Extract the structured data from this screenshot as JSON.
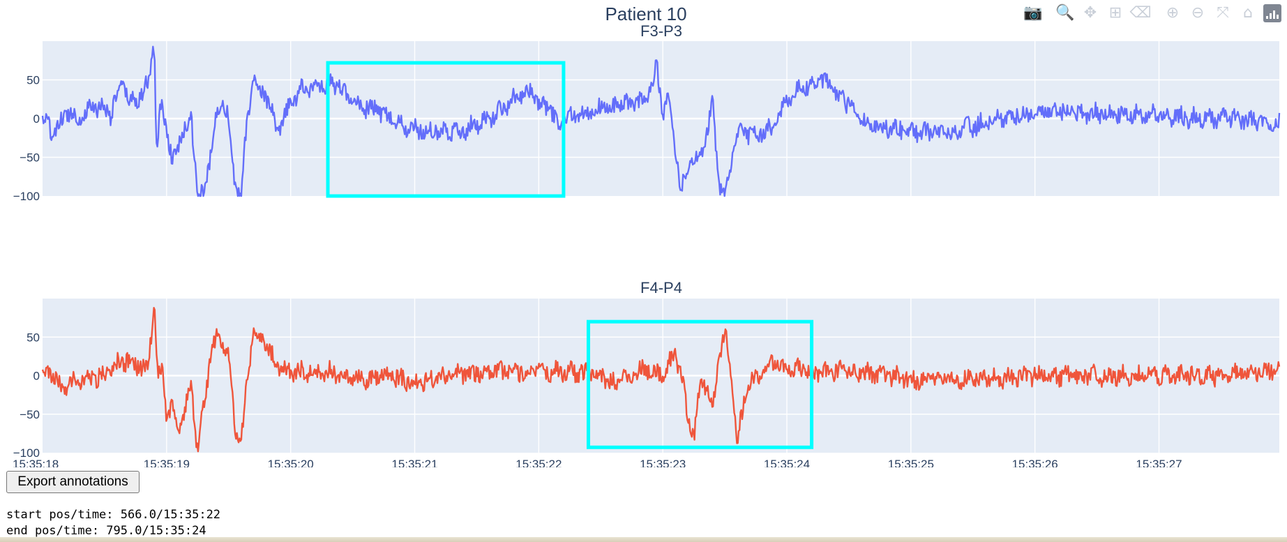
{
  "chart_data": {
    "type": "line",
    "title": "Patient 10",
    "x_tick_labels": [
      "15:35:18",
      "15:35:19",
      "15:35:20",
      "15:35:21",
      "15:35:22",
      "15:35:23",
      "15:35:24",
      "15:35:25",
      "15:35:26",
      "15:35:27"
    ],
    "x_range_seconds": [
      0,
      9.97
    ],
    "y_ticks": [
      50,
      0,
      -50,
      -100
    ],
    "y_range": [
      -100,
      100
    ],
    "grid": true,
    "subplots": [
      {
        "title": "F3-P3",
        "color": "#636efa",
        "keypoints": [
          [
            0.0,
            0
          ],
          [
            0.1,
            -20
          ],
          [
            0.2,
            10
          ],
          [
            0.3,
            0
          ],
          [
            0.4,
            15
          ],
          [
            0.5,
            15
          ],
          [
            0.55,
            5
          ],
          [
            0.6,
            30
          ],
          [
            0.65,
            45
          ],
          [
            0.7,
            20
          ],
          [
            0.8,
            30
          ],
          [
            0.85,
            45
          ],
          [
            0.9,
            100
          ],
          [
            0.92,
            -50
          ],
          [
            0.95,
            20
          ],
          [
            1.0,
            -10
          ],
          [
            1.05,
            -60
          ],
          [
            1.1,
            -30
          ],
          [
            1.2,
            0
          ],
          [
            1.25,
            -100
          ],
          [
            1.3,
            -100
          ],
          [
            1.4,
            0
          ],
          [
            1.45,
            30
          ],
          [
            1.5,
            0
          ],
          [
            1.55,
            -90
          ],
          [
            1.6,
            -100
          ],
          [
            1.65,
            0
          ],
          [
            1.7,
            50
          ],
          [
            1.8,
            30
          ],
          [
            1.9,
            -20
          ],
          [
            2.0,
            20
          ],
          [
            2.1,
            40
          ],
          [
            2.2,
            40
          ],
          [
            2.3,
            45
          ],
          [
            2.4,
            40
          ],
          [
            2.5,
            20
          ],
          [
            2.7,
            10
          ],
          [
            2.9,
            -10
          ],
          [
            3.0,
            -15
          ],
          [
            3.2,
            -15
          ],
          [
            3.4,
            -15
          ],
          [
            3.6,
            0
          ],
          [
            3.8,
            25
          ],
          [
            3.9,
            40
          ],
          [
            4.0,
            20
          ],
          [
            4.1,
            10
          ],
          [
            4.15,
            -10
          ],
          [
            4.2,
            0
          ],
          [
            4.4,
            10
          ],
          [
            4.6,
            15
          ],
          [
            4.8,
            20
          ],
          [
            4.9,
            35
          ],
          [
            4.95,
            70
          ],
          [
            5.0,
            10
          ],
          [
            5.05,
            30
          ],
          [
            5.1,
            -40
          ],
          [
            5.15,
            -95
          ],
          [
            5.2,
            -60
          ],
          [
            5.3,
            -50
          ],
          [
            5.35,
            -20
          ],
          [
            5.4,
            20
          ],
          [
            5.45,
            -80
          ],
          [
            5.5,
            -100
          ],
          [
            5.6,
            -20
          ],
          [
            5.8,
            -20
          ],
          [
            5.9,
            -10
          ],
          [
            6.0,
            20
          ],
          [
            6.1,
            40
          ],
          [
            6.2,
            40
          ],
          [
            6.3,
            50
          ],
          [
            6.4,
            30
          ],
          [
            6.5,
            20
          ],
          [
            6.6,
            0
          ],
          [
            6.7,
            -10
          ],
          [
            7.0,
            -15
          ],
          [
            7.3,
            -20
          ],
          [
            7.5,
            -10
          ],
          [
            7.8,
            5
          ],
          [
            8.2,
            10
          ],
          [
            8.6,
            5
          ],
          [
            9.0,
            5
          ],
          [
            9.3,
            0
          ],
          [
            9.6,
            0
          ],
          [
            9.97,
            -5
          ]
        ],
        "annotation": {
          "x0": 2.3,
          "x1": 4.2,
          "y0": -100,
          "y1": 72,
          "color": "#00ffff"
        }
      },
      {
        "title": "F4-P4",
        "color": "#ef553b",
        "keypoints": [
          [
            0.0,
            5
          ],
          [
            0.1,
            0
          ],
          [
            0.15,
            -15
          ],
          [
            0.3,
            -5
          ],
          [
            0.5,
            0
          ],
          [
            0.6,
            15
          ],
          [
            0.7,
            20
          ],
          [
            0.8,
            10
          ],
          [
            0.85,
            10
          ],
          [
            0.9,
            95
          ],
          [
            0.93,
            -5
          ],
          [
            0.97,
            15
          ],
          [
            1.0,
            -60
          ],
          [
            1.05,
            -40
          ],
          [
            1.1,
            -70
          ],
          [
            1.2,
            -15
          ],
          [
            1.25,
            -100
          ],
          [
            1.35,
            20
          ],
          [
            1.4,
            50
          ],
          [
            1.5,
            30
          ],
          [
            1.55,
            -70
          ],
          [
            1.6,
            -90
          ],
          [
            1.65,
            0
          ],
          [
            1.7,
            55
          ],
          [
            1.8,
            40
          ],
          [
            1.9,
            10
          ],
          [
            2.0,
            5
          ],
          [
            2.3,
            5
          ],
          [
            2.6,
            -5
          ],
          [
            2.8,
            0
          ],
          [
            3.0,
            -10
          ],
          [
            3.3,
            0
          ],
          [
            3.6,
            5
          ],
          [
            3.9,
            5
          ],
          [
            4.2,
            5
          ],
          [
            4.5,
            0
          ],
          [
            4.6,
            -10
          ],
          [
            4.8,
            5
          ],
          [
            4.9,
            10
          ],
          [
            5.0,
            0
          ],
          [
            5.1,
            30
          ],
          [
            5.15,
            0
          ],
          [
            5.2,
            -50
          ],
          [
            5.25,
            -80
          ],
          [
            5.3,
            -15
          ],
          [
            5.35,
            -10
          ],
          [
            5.4,
            -45
          ],
          [
            5.45,
            20
          ],
          [
            5.5,
            60
          ],
          [
            5.55,
            0
          ],
          [
            5.6,
            -85
          ],
          [
            5.65,
            -40
          ],
          [
            5.7,
            -10
          ],
          [
            5.8,
            0
          ],
          [
            5.9,
            20
          ],
          [
            6.0,
            5
          ],
          [
            6.1,
            10
          ],
          [
            6.2,
            5
          ],
          [
            6.5,
            5
          ],
          [
            6.8,
            0
          ],
          [
            7.0,
            -5
          ],
          [
            7.5,
            -5
          ],
          [
            8.0,
            0
          ],
          [
            8.5,
            0
          ],
          [
            9.0,
            0
          ],
          [
            9.5,
            0
          ],
          [
            9.8,
            5
          ],
          [
            9.97,
            10
          ]
        ],
        "annotation": {
          "x0": 4.4,
          "x1": 6.2,
          "y0": -93,
          "y1": 70,
          "color": "#00ffff"
        }
      }
    ]
  },
  "modebar": {
    "icons": [
      "camera-icon",
      "zoom-icon",
      "pan-icon",
      "box-select-icon",
      "erase-shape-icon",
      "zoom-in-icon",
      "zoom-out-icon",
      "autoscale-icon",
      "reset-axes-icon"
    ],
    "glyphs": [
      "📷",
      "🔍",
      "✥",
      "⊞",
      "⌫",
      "⊕",
      "⊖",
      "⤧",
      "⌂"
    ]
  },
  "controls": {
    "export_label": "Export annotations"
  },
  "status": {
    "start": "start pos/time: 566.0/15:35:22",
    "end": "end pos/time: 795.0/15:35:24"
  }
}
